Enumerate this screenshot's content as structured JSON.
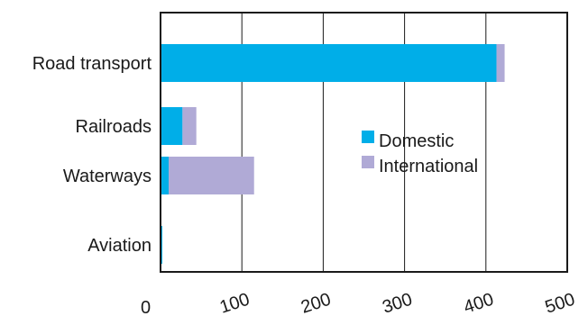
{
  "chart_data": {
    "type": "bar",
    "orientation": "horizontal",
    "stacked": true,
    "categories": [
      "Road transport",
      "Railroads",
      "Waterways",
      "Aviation"
    ],
    "series": [
      {
        "name": "Domestic",
        "values": [
          413,
          27,
          10,
          2
        ],
        "color": "#00aee8"
      },
      {
        "name": "International",
        "values": [
          10,
          17,
          105,
          0
        ],
        "color": "#b0aad6"
      }
    ],
    "x_ticks": [
      "0",
      "100",
      "200",
      "300",
      "400",
      "500"
    ],
    "xlim": [
      0,
      500
    ],
    "grid": "vertical",
    "legend_position": "center-right"
  }
}
